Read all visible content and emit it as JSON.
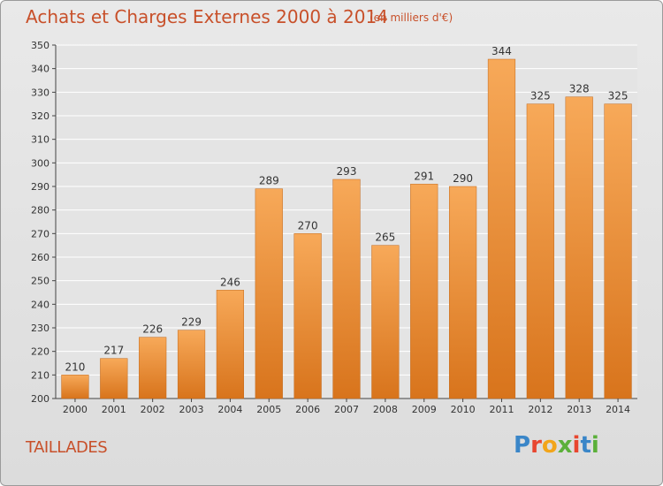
{
  "header": {
    "title": "Achats et Charges Externes 2000 à 2014",
    "subtitle": "(en milliers d'€)"
  },
  "footer": {
    "town": "TAILLADES",
    "logo_text": "Proxiti"
  },
  "colors": {
    "title": "#c8502a",
    "bar_light": "#f7a959",
    "bar_dark": "#d8741c",
    "grid": "#ffffff",
    "axis": "#444444"
  },
  "chart_data": {
    "type": "bar",
    "categories": [
      "2000",
      "2001",
      "2002",
      "2003",
      "2004",
      "2005",
      "2006",
      "2007",
      "2008",
      "2009",
      "2010",
      "2011",
      "2012",
      "2013",
      "2014"
    ],
    "values": [
      210,
      217,
      226,
      229,
      246,
      289,
      270,
      293,
      265,
      291,
      290,
      344,
      325,
      328,
      325
    ],
    "ylim": [
      200,
      350
    ],
    "ytick_step": 10,
    "grid": true,
    "title": "Achats et Charges Externes 2000 à 2014",
    "subtitle": "(en milliers d'€)",
    "xlabel": "",
    "ylabel": ""
  }
}
